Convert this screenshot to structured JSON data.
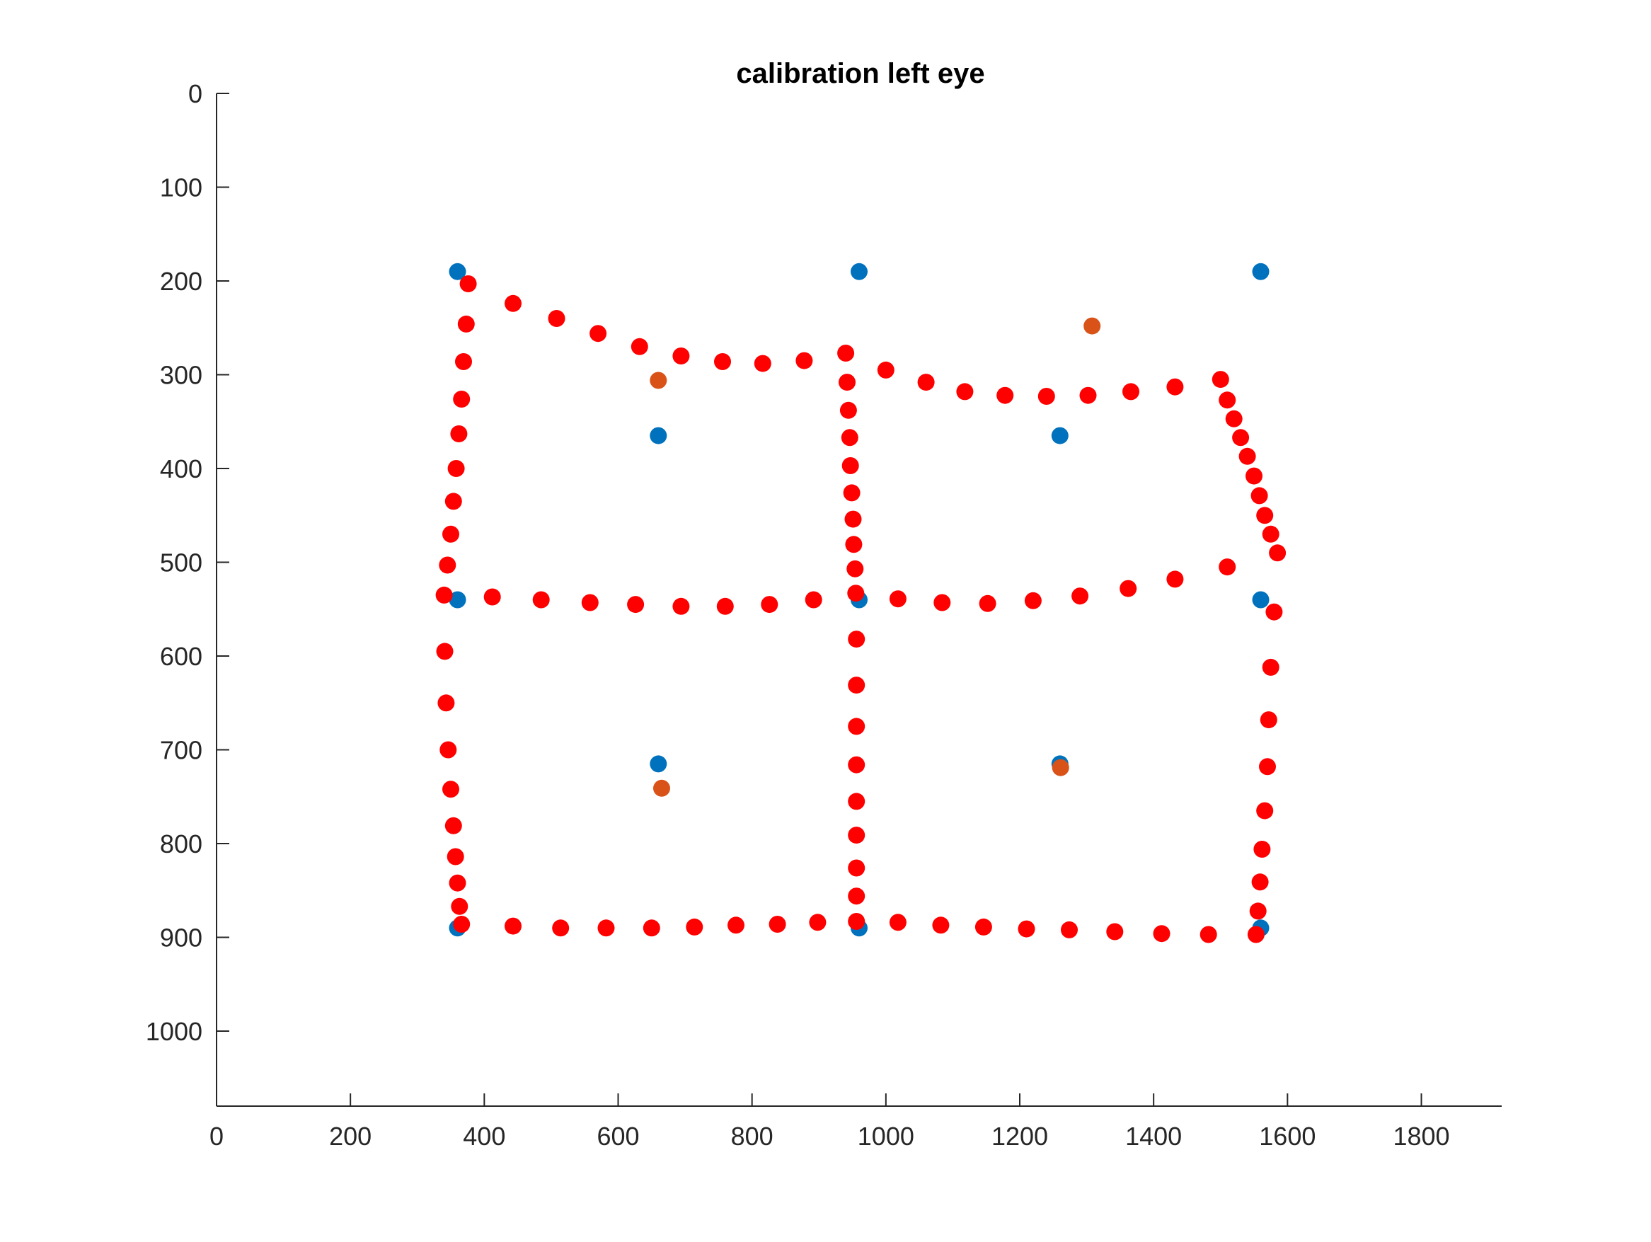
{
  "chart_data": {
    "type": "scatter",
    "title": "calibration left eye",
    "xlabel": "",
    "ylabel": "",
    "xlim": [
      0,
      1920
    ],
    "ylim": [
      0,
      1080
    ],
    "y_reversed": true,
    "grid": false,
    "xticks": [
      0,
      200,
      400,
      600,
      800,
      1000,
      1200,
      1400,
      1600,
      1800
    ],
    "yticks": [
      0,
      100,
      200,
      300,
      400,
      500,
      600,
      700,
      800,
      900,
      1000
    ],
    "xtick_labels": [
      "0",
      "200",
      "400",
      "600",
      "800",
      "1000",
      "1200",
      "1400",
      "1600",
      "1800"
    ],
    "ytick_labels": [
      "0",
      "100",
      "200",
      "300",
      "400",
      "500",
      "600",
      "700",
      "800",
      "900",
      "1000"
    ],
    "series": [
      {
        "color": "#0072BD",
        "points": [
          [
            360,
            190
          ],
          [
            960,
            190
          ],
          [
            1560,
            190
          ],
          [
            660,
            365
          ],
          [
            1260,
            365
          ],
          [
            360,
            540
          ],
          [
            960,
            540
          ],
          [
            1560,
            540
          ],
          [
            660,
            715
          ],
          [
            1260,
            715
          ],
          [
            360,
            890
          ],
          [
            960,
            890
          ],
          [
            1560,
            890
          ]
        ]
      },
      {
        "color": "#D95319",
        "points": [
          [
            1308,
            248
          ],
          [
            660,
            306
          ],
          [
            665,
            741
          ],
          [
            1261,
            719
          ]
        ]
      },
      {
        "color": "#FF0000",
        "points": [
          [
            376,
            203
          ],
          [
            373,
            246
          ],
          [
            369,
            286
          ],
          [
            366,
            326
          ],
          [
            362,
            363
          ],
          [
            358,
            400
          ],
          [
            354,
            435
          ],
          [
            350,
            470
          ],
          [
            345,
            503
          ],
          [
            340,
            535
          ],
          [
            341,
            595
          ],
          [
            343,
            650
          ],
          [
            346,
            700
          ],
          [
            350,
            742
          ],
          [
            354,
            781
          ],
          [
            357,
            814
          ],
          [
            360,
            842
          ],
          [
            363,
            867
          ],
          [
            366,
            886
          ],
          [
            443,
            224
          ],
          [
            508,
            240
          ],
          [
            570,
            256
          ],
          [
            632,
            270
          ],
          [
            694,
            280
          ],
          [
            756,
            286
          ],
          [
            816,
            288
          ],
          [
            878,
            285
          ],
          [
            940,
            277
          ],
          [
            1000,
            295
          ],
          [
            1060,
            308
          ],
          [
            1118,
            318
          ],
          [
            1178,
            322
          ],
          [
            1240,
            323
          ],
          [
            1302,
            322
          ],
          [
            1366,
            318
          ],
          [
            1432,
            313
          ],
          [
            1500,
            305
          ],
          [
            1510,
            327
          ],
          [
            1520,
            347
          ],
          [
            1530,
            367
          ],
          [
            1540,
            387
          ],
          [
            1550,
            408
          ],
          [
            1558,
            429
          ],
          [
            1566,
            450
          ],
          [
            1575,
            470
          ],
          [
            1585,
            490
          ],
          [
            1580,
            553
          ],
          [
            1575,
            612
          ],
          [
            1572,
            668
          ],
          [
            1570,
            718
          ],
          [
            1566,
            765
          ],
          [
            1562,
            806
          ],
          [
            1559,
            841
          ],
          [
            1556,
            872
          ],
          [
            1553,
            897
          ],
          [
            942,
            308
          ],
          [
            944,
            338
          ],
          [
            946,
            367
          ],
          [
            947,
            397
          ],
          [
            949,
            426
          ],
          [
            951,
            454
          ],
          [
            952,
            481
          ],
          [
            954,
            507
          ],
          [
            955,
            533
          ],
          [
            956,
            582
          ],
          [
            956,
            631
          ],
          [
            956,
            675
          ],
          [
            956,
            716
          ],
          [
            956,
            755
          ],
          [
            956,
            791
          ],
          [
            956,
            826
          ],
          [
            956,
            856
          ],
          [
            956,
            883
          ],
          [
            412,
            537
          ],
          [
            485,
            540
          ],
          [
            558,
            543
          ],
          [
            626,
            545
          ],
          [
            694,
            547
          ],
          [
            760,
            547
          ],
          [
            826,
            545
          ],
          [
            892,
            540
          ],
          [
            1018,
            539
          ],
          [
            1084,
            543
          ],
          [
            1152,
            544
          ],
          [
            1220,
            541
          ],
          [
            1290,
            536
          ],
          [
            1362,
            528
          ],
          [
            1432,
            518
          ],
          [
            1510,
            505
          ],
          [
            443,
            888
          ],
          [
            514,
            890
          ],
          [
            582,
            890
          ],
          [
            650,
            890
          ],
          [
            714,
            889
          ],
          [
            776,
            887
          ],
          [
            838,
            886
          ],
          [
            898,
            884
          ],
          [
            1018,
            884
          ],
          [
            1082,
            887
          ],
          [
            1146,
            889
          ],
          [
            1210,
            891
          ],
          [
            1274,
            892
          ],
          [
            1342,
            894
          ],
          [
            1412,
            896
          ],
          [
            1482,
            897
          ]
        ]
      }
    ]
  }
}
